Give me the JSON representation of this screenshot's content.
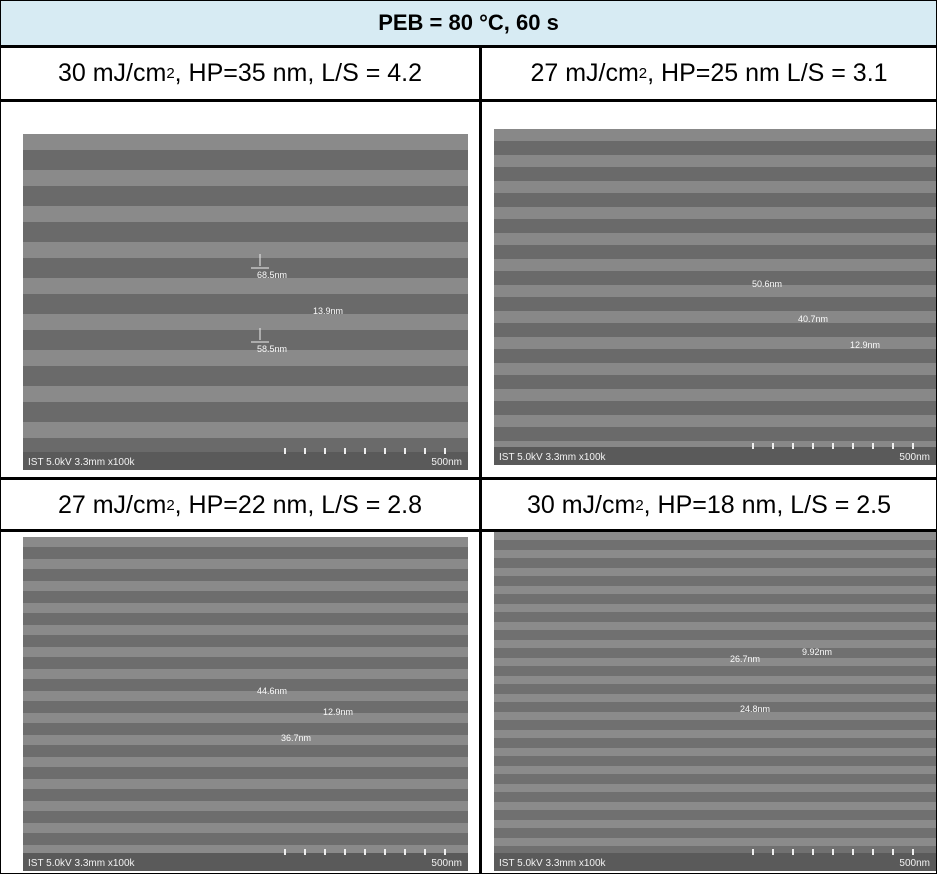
{
  "header": {
    "title": "PEB = 80 °C, 60 s"
  },
  "panels": [
    {
      "label_dose": "30 mJ/cm",
      "label_rest": ", HP=35 nm, L/S = 4.2",
      "sem_info": "IST 5.0kV 3.3mm x100k",
      "scale": "500nm",
      "measurements": [
        "68.5nm",
        "13.9nm",
        "58.5nm"
      ]
    },
    {
      "label_dose": "27 mJ/cm",
      "label_rest": ", HP=25 nm L/S = 3.1",
      "sem_info": "IST 5.0kV 3.3mm x100k",
      "scale": "500nm",
      "measurements": [
        "50.6nm",
        "40.7nm",
        "12.9nm"
      ]
    },
    {
      "label_dose": "27 mJ/cm",
      "label_rest": ", HP=22 nm, L/S = 2.8",
      "sem_info": "IST 5.0kV 3.3mm x100k",
      "scale": "500nm",
      "measurements": [
        "44.6nm",
        "12.9nm",
        "36.7nm"
      ]
    },
    {
      "label_dose": "30 mJ/cm",
      "label_rest": ", HP=18 nm, L/S = 2.5",
      "sem_info": "IST 5.0kV 3.3mm x100k",
      "scale": "500nm",
      "measurements": [
        "26.7nm",
        "9.92nm",
        "24.8nm"
      ]
    }
  ],
  "superscript": "2"
}
